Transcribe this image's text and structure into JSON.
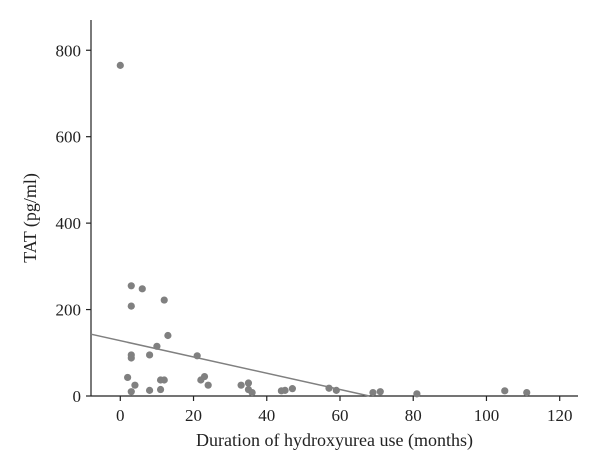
{
  "chart_data": {
    "type": "scatter",
    "title": "",
    "xlabel": "Duration of hydroxyurea use (months)",
    "ylabel": "TAT (pg/ml)",
    "xlim": [
      -8,
      125
    ],
    "ylim": [
      0,
      870
    ],
    "xticks": [
      0,
      20,
      40,
      60,
      80,
      100,
      120
    ],
    "yticks": [
      0,
      200,
      400,
      600,
      800
    ],
    "grid": false,
    "legend": "none",
    "colors": {
      "points": "#808080",
      "trend_line": "#808080",
      "axes": "#222222"
    },
    "series": [
      {
        "points": [
          [
            0,
            765
          ],
          [
            3,
            255
          ],
          [
            6,
            248
          ],
          [
            12,
            222
          ],
          [
            3,
            208
          ],
          [
            13,
            140
          ],
          [
            10,
            115
          ],
          [
            3,
            95
          ],
          [
            3,
            88
          ],
          [
            8,
            95
          ],
          [
            21,
            93
          ],
          [
            2,
            43
          ],
          [
            4,
            25
          ],
          [
            3,
            10
          ],
          [
            8,
            13
          ],
          [
            11,
            37
          ],
          [
            12,
            37
          ],
          [
            11,
            15
          ],
          [
            22,
            37
          ],
          [
            23,
            45
          ],
          [
            24,
            25
          ],
          [
            33,
            25
          ],
          [
            35,
            30
          ],
          [
            35,
            15
          ],
          [
            36,
            8
          ],
          [
            44,
            12
          ],
          [
            45,
            13
          ],
          [
            47,
            17
          ],
          [
            57,
            18
          ],
          [
            59,
            13
          ],
          [
            69,
            8
          ],
          [
            71,
            10
          ],
          [
            81,
            5
          ],
          [
            105,
            12
          ],
          [
            111,
            8
          ]
        ]
      }
    ],
    "trend_line": {
      "x": [
        -8,
        68
      ],
      "y": [
        143,
        0
      ]
    }
  }
}
